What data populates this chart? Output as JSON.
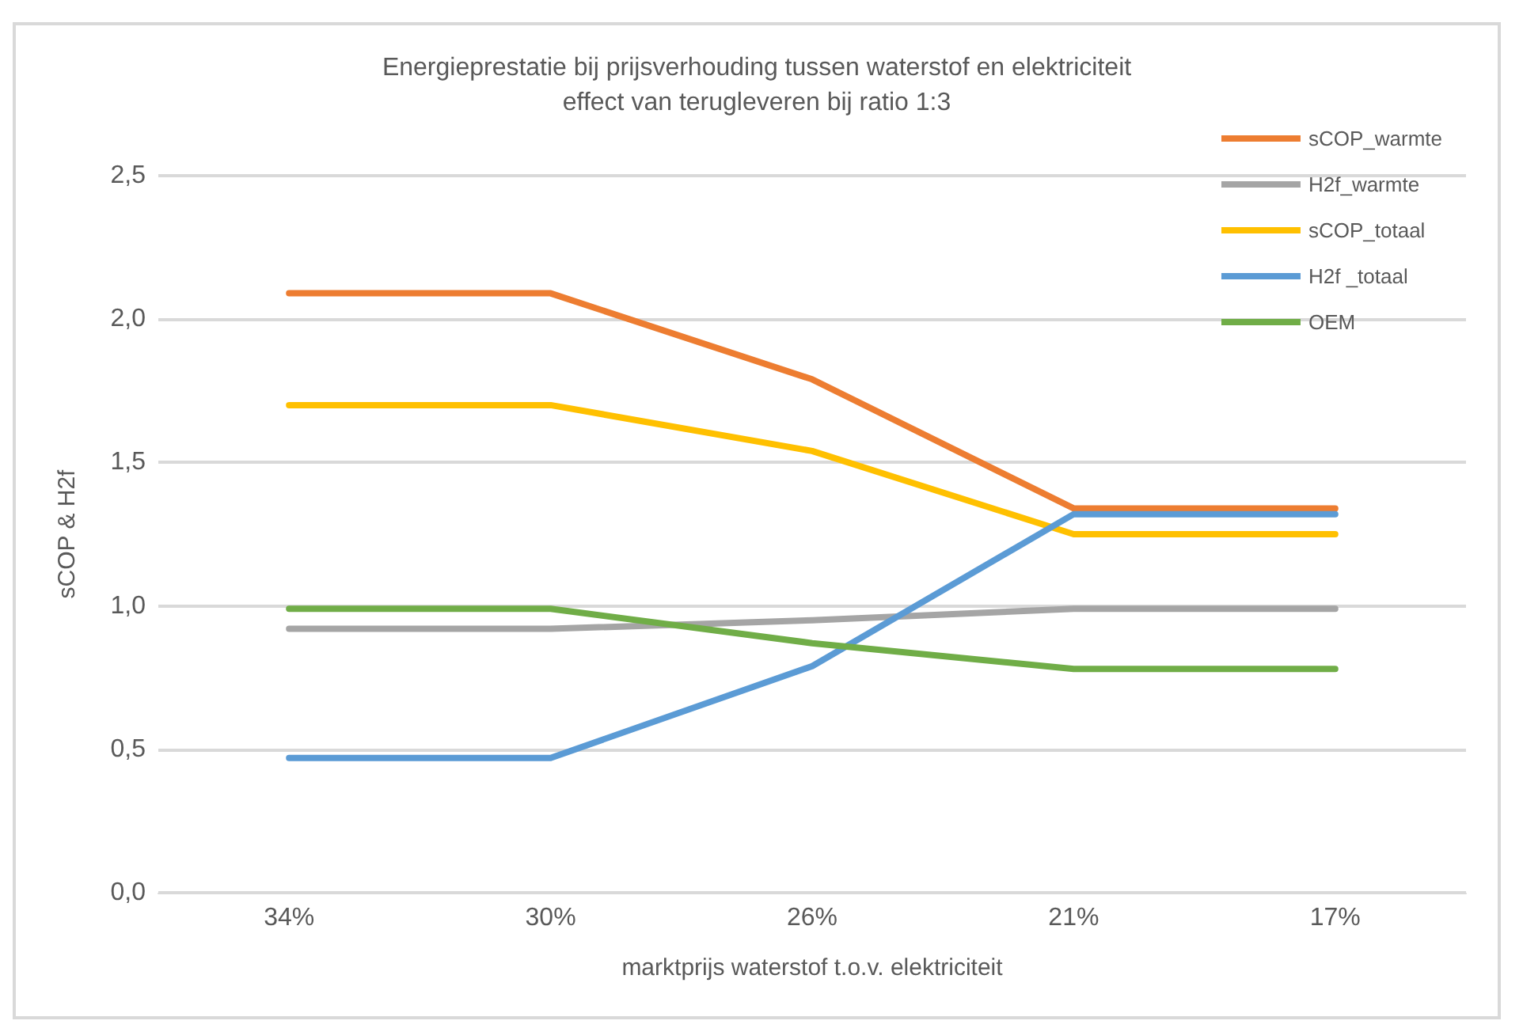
{
  "chart_data": {
    "type": "line",
    "title": "Energieprestatie bij prijsverhouding tussen waterstof en elektriciteit",
    "subtitle": "effect van terugleveren bij ratio 1:3",
    "xlabel": "marktprijs waterstof t.o.v. elektriciteit",
    "ylabel": "sCOP & H2f",
    "categories": [
      "34%",
      "30%",
      "26%",
      "21%",
      "17%"
    ],
    "series": [
      {
        "name": "sCOP_warmte",
        "color": "#ed7d31",
        "values": [
          2.09,
          2.09,
          1.79,
          1.34,
          1.34
        ]
      },
      {
        "name": "H2f_warmte",
        "color": "#a5a5a5",
        "values": [
          0.92,
          0.92,
          0.95,
          0.99,
          0.99
        ]
      },
      {
        "name": "sCOP_totaal",
        "color": "#ffc000",
        "values": [
          1.7,
          1.7,
          1.54,
          1.25,
          1.25
        ]
      },
      {
        "name": "H2f _totaal",
        "color": "#5b9bd5",
        "values": [
          0.47,
          0.47,
          0.79,
          1.32,
          1.32
        ]
      },
      {
        "name": "OEM",
        "color": "#70ad47",
        "values": [
          0.99,
          0.99,
          0.87,
          0.78,
          0.78
        ]
      }
    ],
    "ylim": [
      0,
      2.5
    ],
    "yticks": [
      {
        "value": 0,
        "label": "0,0"
      },
      {
        "value": 0.5,
        "label": "0,5"
      },
      {
        "value": 1,
        "label": "1,0"
      },
      {
        "value": 1.5,
        "label": "1,5"
      },
      {
        "value": 2,
        "label": "2,0"
      },
      {
        "value": 2.5,
        "label": "2,5"
      }
    ],
    "grid": "y",
    "legend": "top right",
    "marker": "none",
    "line_style": "solid"
  }
}
